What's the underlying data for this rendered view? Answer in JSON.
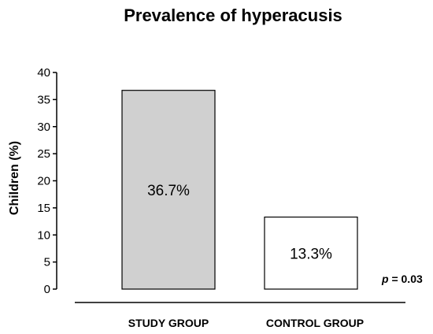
{
  "chart_data": {
    "type": "bar",
    "title": "Prevalence of hyperacusis",
    "xlabel": "",
    "ylabel": "Children (%)",
    "ylim": [
      0,
      40
    ],
    "yticks": [
      0,
      5,
      10,
      15,
      20,
      25,
      30,
      35,
      40
    ],
    "categories": [
      "STUDY GROUP",
      "CONTROL GROUP"
    ],
    "values": [
      36.7,
      13.3
    ],
    "data_labels": [
      "36.7%",
      "13.3%"
    ],
    "bar_colors": [
      "#d0d0d0",
      "#ffffff"
    ],
    "grid": false,
    "legend": "none",
    "annotation": {
      "p_symbol": "p",
      "p_value_text": " = 0.03"
    }
  }
}
